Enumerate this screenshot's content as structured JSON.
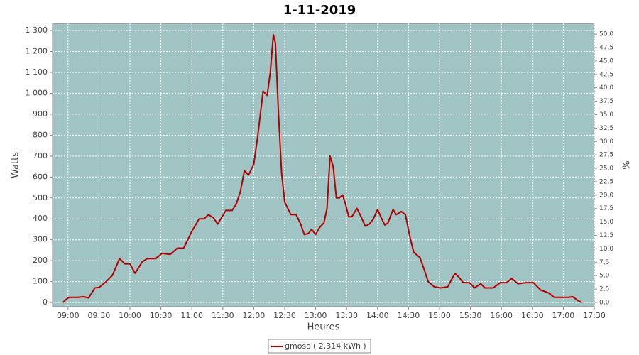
{
  "chart_data": {
    "type": "line",
    "title": "1-11-2019",
    "x_label": "Heures",
    "y_label": "Watts",
    "y2_label": "%",
    "x": [
      "08:55",
      "08:57",
      "09:01",
      "09:10",
      "09:15",
      "09:20",
      "09:26",
      "09:30",
      "09:37",
      "09:43",
      "09:50",
      "09:55",
      "10:00",
      "10:05",
      "10:12",
      "10:17",
      "10:25",
      "10:31",
      "10:39",
      "10:46",
      "10:52",
      "11:00",
      "11:07",
      "11:12",
      "11:16",
      "11:21",
      "11:25",
      "11:33",
      "11:39",
      "11:43",
      "11:47",
      "11:51",
      "11:55",
      "12:00",
      "12:04",
      "12:09",
      "12:13",
      "12:16",
      "12:19",
      "12:21",
      "12:24",
      "12:27",
      "12:30",
      "12:32",
      "12:36",
      "12:41",
      "12:45",
      "12:49",
      "12:53",
      "12:56",
      "13:00",
      "13:04",
      "13:08",
      "13:11",
      "13:14",
      "13:17",
      "13:20",
      "13:23",
      "13:26",
      "13:29",
      "13:32",
      "13:35",
      "13:40",
      "13:44",
      "13:48",
      "13:52",
      "13:56",
      "14:00",
      "14:03",
      "14:07",
      "14:10",
      "14:15",
      "14:18",
      "14:23",
      "14:27",
      "14:31",
      "14:35",
      "14:41",
      "14:45",
      "14:49",
      "14:55",
      "15:01",
      "15:08",
      "15:15",
      "15:19",
      "15:23",
      "15:29",
      "15:34",
      "15:40",
      "15:44",
      "15:52",
      "15:59",
      "16:05",
      "16:10",
      "16:16",
      "16:24",
      "16:31",
      "16:38",
      "16:46",
      "16:51",
      "16:58",
      "17:05",
      "17:09",
      "17:14",
      "17:18"
    ],
    "series": [
      {
        "name": "gmosol( 2,314 kWh )",
        "color": "#b00000",
        "values": [
          0,
          10,
          25,
          25,
          28,
          22,
          70,
          72,
          100,
          130,
          210,
          185,
          185,
          140,
          195,
          210,
          210,
          235,
          230,
          260,
          260,
          340,
          400,
          400,
          420,
          405,
          375,
          440,
          440,
          470,
          530,
          630,
          610,
          660,
          800,
          1010,
          990,
          1100,
          1280,
          1240,
          900,
          620,
          480,
          460,
          420,
          420,
          380,
          325,
          330,
          350,
          325,
          360,
          380,
          450,
          700,
          650,
          500,
          500,
          515,
          470,
          410,
          410,
          450,
          410,
          365,
          375,
          400,
          445,
          410,
          370,
          380,
          445,
          420,
          435,
          420,
          320,
          240,
          215,
          160,
          100,
          75,
          70,
          75,
          140,
          120,
          95,
          95,
          70,
          90,
          70,
          70,
          95,
          95,
          115,
          90,
          95,
          95,
          60,
          45,
          25,
          25,
          25,
          28,
          10,
          0
        ]
      }
    ],
    "xlim": [
      "08:45",
      "17:30"
    ],
    "xticks": [
      "09:00",
      "09:30",
      "10:00",
      "10:30",
      "11:00",
      "11:30",
      "12:00",
      "12:30",
      "13:00",
      "13:30",
      "14:00",
      "14:30",
      "15:00",
      "15:30",
      "16:00",
      "16:30",
      "17:00",
      "17:30"
    ],
    "ylim": [
      -20,
      1334
    ],
    "yticks": [
      0,
      100,
      200,
      300,
      400,
      500,
      600,
      700,
      800,
      900,
      {
        "value": 1000,
        "label": "1 000"
      },
      {
        "value": 1100,
        "label": "1 100"
      },
      {
        "value": 1200,
        "label": "1 200"
      },
      {
        "value": 1300,
        "label": "1 300"
      }
    ],
    "y2lim": [
      -0.8,
      52
    ],
    "y2ticks": [
      {
        "value": 0,
        "label": "0,0"
      },
      {
        "value": 2.5,
        "label": "2,5"
      },
      {
        "value": 5,
        "label": "5,0"
      },
      {
        "value": 7.5,
        "label": "7,5"
      },
      {
        "value": 10,
        "label": "10,0"
      },
      {
        "value": 12.5,
        "label": "12,5"
      },
      {
        "value": 15,
        "label": "15,0"
      },
      {
        "value": 17.5,
        "label": "17,5"
      },
      {
        "value": 20,
        "label": "20,0"
      },
      {
        "value": 22.5,
        "label": "22,5"
      },
      {
        "value": 25,
        "label": "25,0"
      },
      {
        "value": 27.5,
        "label": "27,5"
      },
      {
        "value": 30,
        "label": "30,0"
      },
      {
        "value": 32.5,
        "label": "32,5"
      },
      {
        "value": 35,
        "label": "35,0"
      },
      {
        "value": 37.5,
        "label": "37,5"
      },
      {
        "value": 40,
        "label": "40,0"
      },
      {
        "value": 42.5,
        "label": "42,5"
      },
      {
        "value": 45,
        "label": "45,0"
      },
      {
        "value": 47.5,
        "label": "47,5"
      },
      {
        "value": 50,
        "label": "50,0"
      }
    ],
    "grid": true,
    "plot_background": "#a0c4c4",
    "legend": "bottom"
  }
}
